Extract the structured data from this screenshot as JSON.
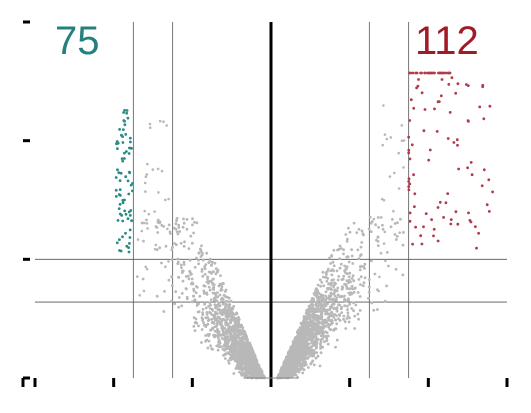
{
  "chart_data": {
    "type": "scatter",
    "description_kind": "volcano",
    "title": "",
    "xlabel": "",
    "ylabel": "",
    "xlim": [
      -3,
      3
    ],
    "ylim": [
      0,
      15
    ],
    "x_ticks": [
      -3,
      -2,
      -1,
      0,
      1,
      2,
      3
    ],
    "y_ticks": [
      0,
      5,
      10,
      15
    ],
    "vertical_lines": [
      -1.75,
      -1.25,
      0,
      1.25,
      1.75
    ],
    "horizontal_lines": [
      3.2,
      5.0
    ],
    "counts": {
      "down": "75",
      "up": "112"
    },
    "colors": {
      "down": "#2a8a86",
      "up": "#b23a4a",
      "neutral": "#b8b8b8",
      "count_down": "#23807c",
      "count_up": "#a01a28",
      "center_line": "#000000",
      "thresholds": "#555555",
      "axis": "#000000"
    },
    "series": [
      {
        "name": "down",
        "count": 75
      },
      {
        "name": "up",
        "count": 112
      },
      {
        "name": "neutral"
      }
    ]
  }
}
